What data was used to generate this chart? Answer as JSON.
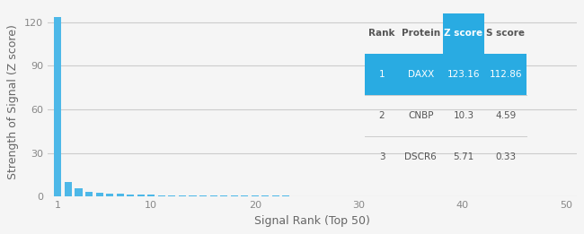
{
  "bar_color": "#4db8e8",
  "background_color": "#f5f5f5",
  "xlabel": "Signal Rank (Top 50)",
  "ylabel": "Strength of Signal (Z score)",
  "yticks": [
    0,
    30,
    60,
    90,
    120
  ],
  "xticks": [
    1,
    10,
    20,
    30,
    40,
    50
  ],
  "xlim": [
    0,
    51
  ],
  "ylim": [
    0,
    130
  ],
  "table_headers": [
    "Rank",
    "Protein",
    "Z score",
    "S score"
  ],
  "table_rows": [
    [
      "1",
      "DAXX",
      "123.16",
      "112.86"
    ],
    [
      "2",
      "CNBP",
      "10.3",
      "4.59"
    ],
    [
      "3",
      "DSCR6",
      "5.71",
      "0.33"
    ]
  ],
  "table_highlight_row": 0,
  "table_highlight_color": "#29abe2",
  "table_header_highlight_col": 2,
  "table_text_color_normal": "#555555",
  "table_text_color_highlight": "#ffffff",
  "z_scores": [
    123.16,
    10.3,
    5.71,
    3.5,
    2.8,
    2.1,
    1.8,
    1.5,
    1.3,
    1.1,
    1.0,
    0.95,
    0.85,
    0.8,
    0.75,
    0.7,
    0.65,
    0.6,
    0.58,
    0.55,
    0.52,
    0.5,
    0.48,
    0.46,
    0.44,
    0.42,
    0.4,
    0.38,
    0.36,
    0.34,
    0.32,
    0.3,
    0.28,
    0.27,
    0.26,
    0.25,
    0.24,
    0.23,
    0.22,
    0.21,
    0.2,
    0.19,
    0.18,
    0.17,
    0.16,
    0.15,
    0.14,
    0.13,
    0.12,
    0.11
  ]
}
